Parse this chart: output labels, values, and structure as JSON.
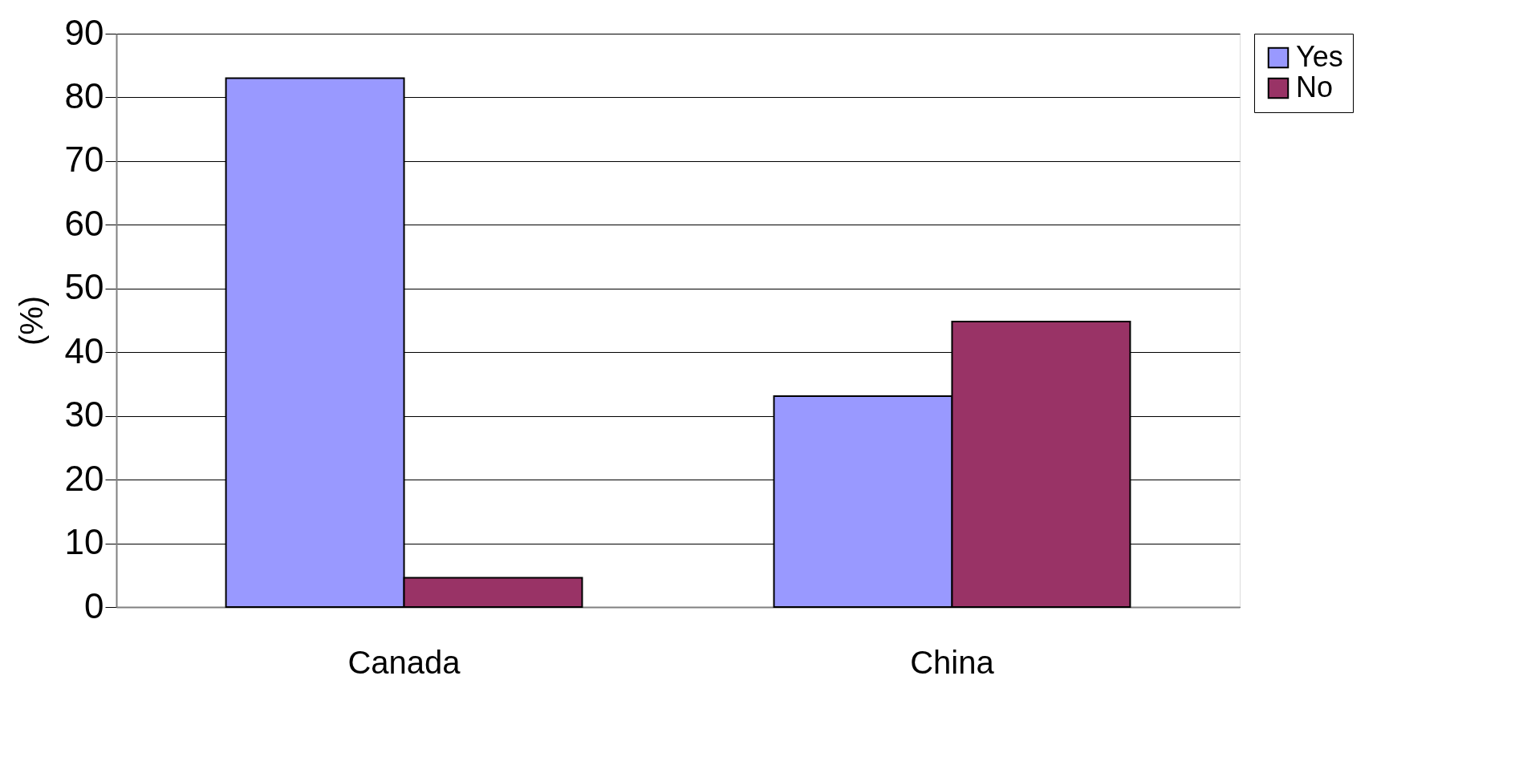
{
  "chart_data": {
    "type": "bar",
    "ylabel": "(%)",
    "categories": [
      "Canada",
      "China"
    ],
    "series": [
      {
        "name": "Yes",
        "color": "#9999ff",
        "values": [
          83,
          33.1
        ]
      },
      {
        "name": "No",
        "color": "#993366",
        "values": [
          4.6,
          44.8
        ]
      }
    ],
    "ylim": [
      0,
      90
    ],
    "yticks": [
      0,
      10,
      20,
      30,
      40,
      50,
      60,
      70,
      80,
      90
    ],
    "grid": "y",
    "legend": "right"
  }
}
